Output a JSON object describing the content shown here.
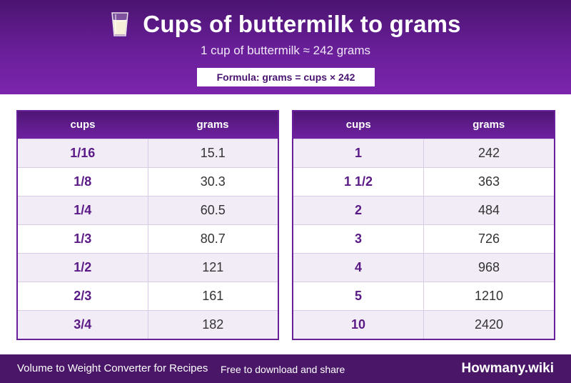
{
  "header": {
    "icon": "glass-of-milk-icon",
    "title": "Cups of buttermilk to grams",
    "subtitle": "1 cup of buttermilk ≈ 242 grams",
    "formula": "Formula: grams = cups × 242"
  },
  "tables": [
    {
      "headers": [
        "cups",
        "grams"
      ],
      "rows": [
        [
          "1/16",
          "15.1"
        ],
        [
          "1/8",
          "30.3"
        ],
        [
          "1/4",
          "60.5"
        ],
        [
          "1/3",
          "80.7"
        ],
        [
          "1/2",
          "121"
        ],
        [
          "2/3",
          "161"
        ],
        [
          "3/4",
          "182"
        ]
      ]
    },
    {
      "headers": [
        "cups",
        "grams"
      ],
      "rows": [
        [
          "1",
          "242"
        ],
        [
          "1 1/2",
          "363"
        ],
        [
          "2",
          "484"
        ],
        [
          "3",
          "726"
        ],
        [
          "4",
          "968"
        ],
        [
          "5",
          "1210"
        ],
        [
          "10",
          "2420"
        ]
      ]
    }
  ],
  "footer": {
    "left_text": "Volume to Weight Converter for Recipes",
    "middle_text": "Free to download and share",
    "brand": "Howmany.wiki"
  },
  "colors": {
    "primary_purple": "#6a1f9a",
    "dark_purple": "#4a1668",
    "row_stripe": "#f2ecf7"
  }
}
